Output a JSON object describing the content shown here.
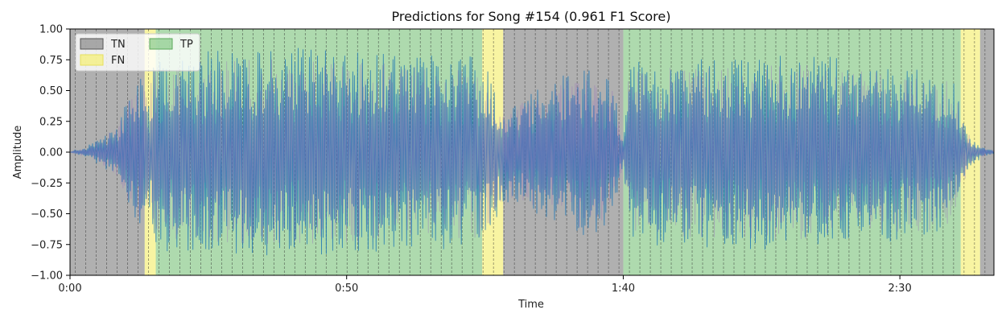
{
  "chart_data": {
    "type": "area",
    "title": "Predictions for Song #154 (0.961 F1 Score)",
    "xlabel": "Time",
    "ylabel": "Amplitude",
    "xlim": [
      0,
      167
    ],
    "ylim": [
      -1.0,
      1.0
    ],
    "x_ticks": [
      {
        "value": 0,
        "label": "0:00"
      },
      {
        "value": 50,
        "label": "0:50"
      },
      {
        "value": 100,
        "label": "1:40"
      },
      {
        "value": 150,
        "label": "2:30"
      }
    ],
    "y_ticks": [
      {
        "value": 1.0,
        "label": "1.00"
      },
      {
        "value": 0.75,
        "label": "0.75"
      },
      {
        "value": 0.5,
        "label": "0.50"
      },
      {
        "value": 0.25,
        "label": "0.25"
      },
      {
        "value": 0.0,
        "label": "0.00"
      },
      {
        "value": -0.25,
        "label": "−0.25"
      },
      {
        "value": -0.5,
        "label": "−0.50"
      },
      {
        "value": -0.75,
        "label": "−0.75"
      },
      {
        "value": -1.0,
        "label": "−1.00"
      }
    ],
    "grid": false,
    "legend": {
      "placement": "top-left",
      "entries": [
        {
          "label": "TN",
          "color": "#808080"
        },
        {
          "label": "FN",
          "color": "#f5f07a"
        },
        {
          "label": "TP",
          "color": "#7cc47c"
        }
      ]
    },
    "regions": [
      {
        "start": 0.0,
        "end": 13.5,
        "class": "TN"
      },
      {
        "start": 13.5,
        "end": 15.5,
        "class": "FN"
      },
      {
        "start": 15.5,
        "end": 74.5,
        "class": "TP"
      },
      {
        "start": 74.5,
        "end": 78.3,
        "class": "FN"
      },
      {
        "start": 78.3,
        "end": 100.0,
        "class": "TN"
      },
      {
        "start": 100.0,
        "end": 161.0,
        "class": "TP"
      },
      {
        "start": 161.0,
        "end": 164.5,
        "class": "FN"
      },
      {
        "start": 164.5,
        "end": 167.0,
        "class": "TN"
      }
    ],
    "beat_interval": 1.89,
    "waveform_envelope": [
      {
        "t": 0,
        "amp": 0.0
      },
      {
        "t": 3,
        "amp": 0.05
      },
      {
        "t": 6,
        "amp": 0.12
      },
      {
        "t": 9,
        "amp": 0.28
      },
      {
        "t": 11,
        "amp": 0.5
      },
      {
        "t": 13,
        "amp": 0.62
      },
      {
        "t": 14,
        "amp": 0.5
      },
      {
        "t": 15.5,
        "amp": 0.8
      },
      {
        "t": 40,
        "amp": 0.85
      },
      {
        "t": 60,
        "amp": 0.8
      },
      {
        "t": 74,
        "amp": 0.78
      },
      {
        "t": 76,
        "amp": 0.65
      },
      {
        "t": 78.3,
        "amp": 0.4
      },
      {
        "t": 82,
        "amp": 0.45
      },
      {
        "t": 88,
        "amp": 0.6
      },
      {
        "t": 92,
        "amp": 0.7
      },
      {
        "t": 98,
        "amp": 0.6
      },
      {
        "t": 100,
        "amp": 0.1
      },
      {
        "t": 101,
        "amp": 0.75
      },
      {
        "t": 130,
        "amp": 0.8
      },
      {
        "t": 158,
        "amp": 0.7
      },
      {
        "t": 160,
        "amp": 0.55
      },
      {
        "t": 161,
        "amp": 0.35
      },
      {
        "t": 163,
        "amp": 0.12
      },
      {
        "t": 165,
        "amp": 0.04
      },
      {
        "t": 167,
        "amp": 0.01
      }
    ],
    "colors": {
      "wave_main": "#1f77b4",
      "wave_overlay": "#9467bd",
      "TN": "#808080",
      "FN": "#f5f07a",
      "TP": "#7cc47c"
    }
  }
}
